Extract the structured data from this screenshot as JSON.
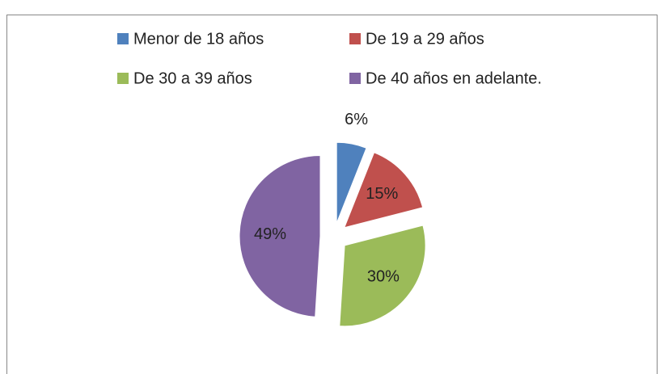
{
  "chart_data": {
    "type": "pie",
    "categories": [
      "Menor de 18 años",
      "De 19 a 29 años",
      "De 30 a 39 años",
      "De 40 años en adelante."
    ],
    "values": [
      6,
      15,
      30,
      49
    ],
    "value_labels": [
      "6%",
      "15%",
      "30%",
      "49%"
    ],
    "colors": [
      "#4f81bd",
      "#c0504d",
      "#9bbb59",
      "#8064a2"
    ],
    "legend": "top"
  }
}
